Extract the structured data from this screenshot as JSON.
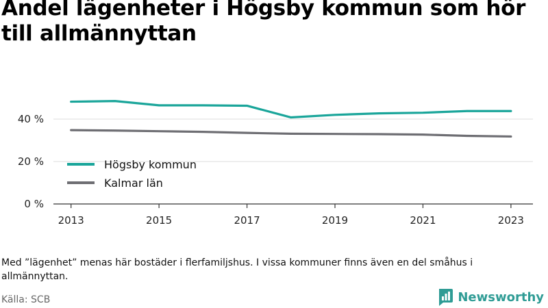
{
  "chart_data": {
    "type": "line",
    "title": "Andel lägenheter i Högsby kommun som hör till allmännyttan",
    "x": [
      2013,
      2014,
      2015,
      2016,
      2017,
      2018,
      2019,
      2020,
      2021,
      2022,
      2023
    ],
    "x_ticks": [
      "2013",
      "2015",
      "2017",
      "2019",
      "2021",
      "2023"
    ],
    "y_ticks": [
      "0 %",
      "20 %",
      "40 %"
    ],
    "ylim": [
      0,
      60
    ],
    "grid": true,
    "legend_position": "left",
    "series": [
      {
        "name": "Högsby kommun",
        "color": "#1aa59a",
        "values": [
          48.2,
          48.5,
          46.5,
          46.5,
          46.3,
          40.8,
          42.0,
          42.7,
          43.0,
          43.8,
          43.8
        ]
      },
      {
        "name": "Kalmar län",
        "color": "#6e6e73",
        "values": [
          34.8,
          34.6,
          34.3,
          34.0,
          33.5,
          33.1,
          33.0,
          32.9,
          32.7,
          32.1,
          31.8
        ]
      }
    ]
  },
  "note": "Med ”lägenhet” menas här bostäder i flerfamiljshus. I vissa kommuner finns även en del småhus i allmännyttan.",
  "source": "Källa: SCB",
  "brand": {
    "name": "Newsworthy",
    "icon": "newsworthy-logo-icon",
    "color": "#2f9c95"
  }
}
